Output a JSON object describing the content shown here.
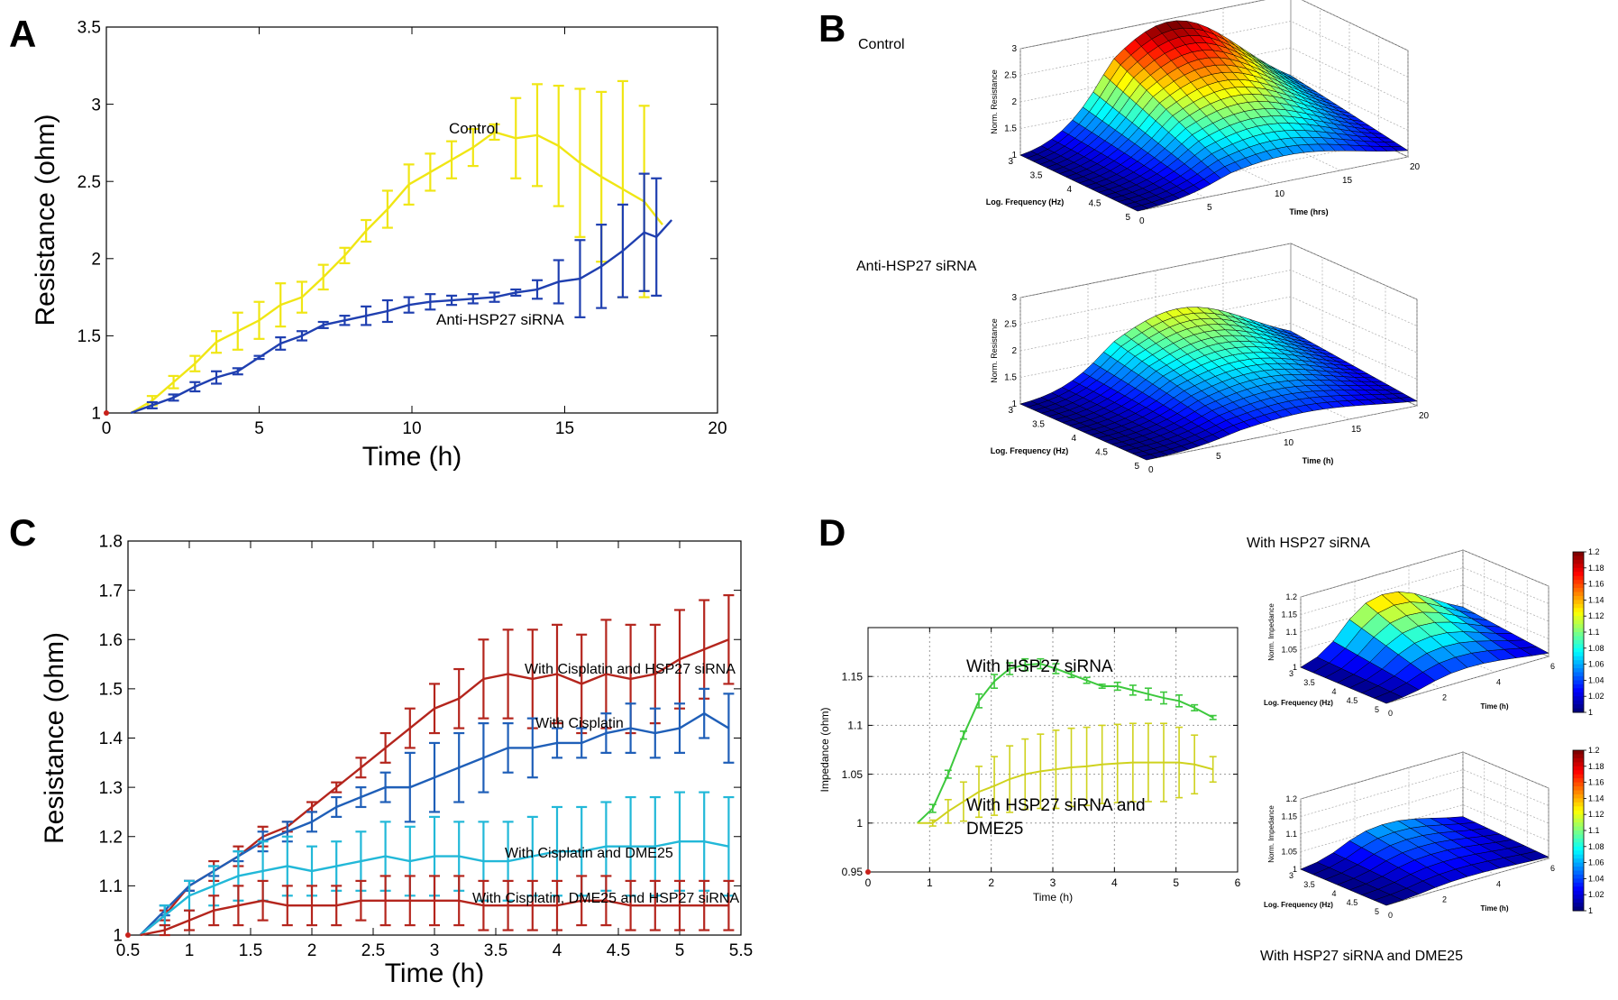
{
  "colors": {
    "yellow": "#f0e614",
    "blue": "#1f3fb0",
    "red": "#b4251d",
    "mid_blue": "#1f5fb8",
    "cyan": "#22b8d8",
    "green": "#3cc83c",
    "olive": "#cfd21e",
    "axis": "#000000"
  },
  "chart_data": [
    {
      "id": "A",
      "panel_label": "A",
      "type": "line",
      "xlabel": "Time (h)",
      "ylabel": "Resistance (ohm)",
      "xlim": [
        0,
        20
      ],
      "ylim": [
        1,
        3.5
      ],
      "xticks": [
        0,
        5,
        10,
        15,
        20
      ],
      "yticks": [
        1,
        1.5,
        2,
        2.5,
        3,
        3.5
      ],
      "xtick_labels": [
        "0",
        "5",
        "10",
        "15",
        "20"
      ],
      "ytick_labels": [
        "1",
        "1.5",
        "2",
        "2.5",
        "3",
        "3.5"
      ],
      "series": [
        {
          "name": "Control",
          "color": "yellow",
          "x": [
            0.8,
            1.5,
            2.2,
            2.9,
            3.6,
            4.3,
            5.0,
            5.7,
            6.4,
            7.1,
            7.8,
            8.5,
            9.2,
            9.9,
            10.6,
            11.3,
            12.0,
            12.7,
            13.4,
            14.1,
            14.8,
            15.5,
            16.2,
            16.9,
            17.6,
            18.2
          ],
          "y": [
            1.0,
            1.08,
            1.2,
            1.32,
            1.46,
            1.53,
            1.6,
            1.7,
            1.75,
            1.88,
            2.02,
            2.18,
            2.32,
            2.48,
            2.56,
            2.64,
            2.72,
            2.82,
            2.78,
            2.8,
            2.73,
            2.62,
            2.53,
            2.45,
            2.37,
            2.22
          ],
          "err": [
            0,
            0.03,
            0.04,
            0.05,
            0.07,
            0.12,
            0.12,
            0.14,
            0.1,
            0.08,
            0.05,
            0.07,
            0.12,
            0.13,
            0.12,
            0.12,
            0.12,
            0.05,
            0.26,
            0.33,
            0.39,
            0.48,
            0.55,
            0.7,
            0.62,
            0
          ]
        },
        {
          "name": "Anti-HSP27 siRNA",
          "color": "blue",
          "x": [
            0.8,
            1.5,
            2.2,
            2.9,
            3.6,
            4.3,
            5.0,
            5.7,
            6.4,
            7.1,
            7.8,
            8.5,
            9.2,
            9.9,
            10.6,
            11.3,
            12.0,
            12.7,
            13.4,
            14.1,
            14.8,
            15.5,
            16.2,
            16.9,
            17.6,
            18.0,
            18.5
          ],
          "y": [
            1.0,
            1.05,
            1.1,
            1.17,
            1.23,
            1.27,
            1.36,
            1.45,
            1.5,
            1.57,
            1.6,
            1.63,
            1.66,
            1.7,
            1.72,
            1.73,
            1.74,
            1.75,
            1.78,
            1.8,
            1.85,
            1.87,
            1.95,
            2.05,
            2.17,
            2.14,
            2.25
          ],
          "err": [
            0,
            0.02,
            0.02,
            0.03,
            0.04,
            0.02,
            0.01,
            0.04,
            0.03,
            0.02,
            0.03,
            0.06,
            0.07,
            0.05,
            0.05,
            0.03,
            0.03,
            0.03,
            0.02,
            0.06,
            0.14,
            0.25,
            0.27,
            0.3,
            0.38,
            0.38,
            0
          ]
        }
      ],
      "annotations": [
        "Control",
        "Anti-HSP27 siRNA"
      ]
    },
    {
      "id": "B",
      "panel_label": "B",
      "type": "surface",
      "plots": [
        {
          "title": "Control",
          "zlabel": "Norm. Resistance",
          "xlabel": "Log. Frequency (Hz)",
          "ylabel": "Time (hrs)",
          "zticks": [
            "1",
            "1.5",
            "2",
            "2.5",
            "3"
          ],
          "xticks": [
            "3",
            "3.5",
            "4",
            "4.5",
            "5"
          ],
          "yticks": [
            "0",
            "5",
            "10",
            "15",
            "20"
          ],
          "peak": 2.95
        },
        {
          "title": "Anti-HSP27 siRNA",
          "zlabel": "Norm. Resistance",
          "xlabel": "Log. Frequency (Hz)",
          "ylabel": "Time (h)",
          "zticks": [
            "1",
            "1.5",
            "2",
            "2.5",
            "3"
          ],
          "xticks": [
            "3",
            "3.5",
            "4",
            "4.5",
            "5"
          ],
          "yticks": [
            "0",
            "5",
            "10",
            "15",
            "20"
          ],
          "peak": 2.2
        }
      ]
    },
    {
      "id": "C",
      "panel_label": "C",
      "type": "line",
      "xlabel": "Time (h)",
      "ylabel": "Resistance (ohm)",
      "xlim": [
        0.5,
        5.5
      ],
      "ylim": [
        1,
        1.8
      ],
      "xticks": [
        0.5,
        1,
        1.5,
        2,
        2.5,
        3,
        3.5,
        4,
        4.5,
        5,
        5.5
      ],
      "yticks": [
        1,
        1.1,
        1.2,
        1.3,
        1.4,
        1.5,
        1.6,
        1.7,
        1.8
      ],
      "xtick_labels": [
        "0.5",
        "1",
        "1.5",
        "2",
        "2.5",
        "3",
        "3.5",
        "4",
        "4.5",
        "5",
        "5.5"
      ],
      "ytick_labels": [
        "1",
        "1.1",
        "1.2",
        "1.3",
        "1.4",
        "1.5",
        "1.6",
        "1.7",
        "1.8"
      ],
      "series": [
        {
          "name": "With Cisplatin and HSP27 siRNA",
          "color": "red",
          "x": [
            0.6,
            0.8,
            1.0,
            1.2,
            1.4,
            1.6,
            1.8,
            2.0,
            2.2,
            2.4,
            2.6,
            2.8,
            3.0,
            3.2,
            3.4,
            3.6,
            3.8,
            4.0,
            4.2,
            4.4,
            4.6,
            4.8,
            5.0,
            5.2,
            5.4
          ],
          "y": [
            1.0,
            1.04,
            1.1,
            1.13,
            1.16,
            1.2,
            1.22,
            1.26,
            1.3,
            1.34,
            1.38,
            1.42,
            1.46,
            1.48,
            1.52,
            1.53,
            1.52,
            1.53,
            1.51,
            1.53,
            1.52,
            1.53,
            1.56,
            1.58,
            1.6
          ],
          "err": [
            0,
            0.01,
            0.01,
            0.02,
            0.02,
            0.02,
            0.01,
            0.01,
            0.01,
            0.02,
            0.03,
            0.04,
            0.05,
            0.06,
            0.08,
            0.09,
            0.1,
            0.1,
            0.1,
            0.11,
            0.11,
            0.1,
            0.1,
            0.1,
            0.09
          ]
        },
        {
          "name": "With Cisplatin",
          "color": "mid_blue",
          "x": [
            0.6,
            0.8,
            1.0,
            1.2,
            1.4,
            1.6,
            1.8,
            2.0,
            2.2,
            2.4,
            2.6,
            2.8,
            3.0,
            3.2,
            3.4,
            3.6,
            3.8,
            4.0,
            4.2,
            4.4,
            4.6,
            4.8,
            5.0,
            5.2,
            5.4
          ],
          "y": [
            1.0,
            1.05,
            1.1,
            1.13,
            1.16,
            1.19,
            1.21,
            1.23,
            1.26,
            1.28,
            1.3,
            1.3,
            1.32,
            1.34,
            1.36,
            1.38,
            1.38,
            1.39,
            1.39,
            1.41,
            1.42,
            1.41,
            1.42,
            1.45,
            1.42
          ],
          "err": [
            0,
            0.01,
            0.01,
            0.01,
            0.01,
            0.02,
            0.02,
            0.02,
            0.02,
            0.02,
            0.03,
            0.07,
            0.07,
            0.07,
            0.07,
            0.05,
            0.06,
            0.03,
            0.03,
            0.04,
            0.05,
            0.05,
            0.05,
            0.05,
            0.07
          ]
        },
        {
          "name": "With Cisplatin and DME25",
          "color": "cyan",
          "x": [
            0.6,
            0.8,
            1.0,
            1.2,
            1.4,
            1.6,
            1.8,
            2.0,
            2.2,
            2.4,
            2.6,
            2.8,
            3.0,
            3.2,
            3.4,
            3.6,
            3.8,
            4.0,
            4.2,
            4.4,
            4.6,
            4.8,
            5.0,
            5.2,
            5.4
          ],
          "y": [
            1.0,
            1.04,
            1.08,
            1.1,
            1.12,
            1.13,
            1.14,
            1.13,
            1.14,
            1.15,
            1.16,
            1.15,
            1.16,
            1.16,
            1.15,
            1.15,
            1.16,
            1.17,
            1.17,
            1.18,
            1.18,
            1.18,
            1.19,
            1.19,
            1.18
          ],
          "err": [
            0,
            0.02,
            0.03,
            0.04,
            0.05,
            0.06,
            0.06,
            0.05,
            0.05,
            0.06,
            0.07,
            0.07,
            0.08,
            0.07,
            0.08,
            0.08,
            0.08,
            0.09,
            0.09,
            0.09,
            0.1,
            0.1,
            0.1,
            0.1,
            0.1
          ]
        },
        {
          "name": "With Cisplatin, DME25 and HSP27 siRNA",
          "color": "red",
          "x": [
            0.6,
            0.8,
            1.0,
            1.2,
            1.4,
            1.6,
            1.8,
            2.0,
            2.2,
            2.4,
            2.6,
            2.8,
            3.0,
            3.2,
            3.4,
            3.6,
            3.8,
            4.0,
            4.2,
            4.4,
            4.6,
            4.8,
            5.0,
            5.2,
            5.4
          ],
          "y": [
            1.0,
            1.01,
            1.03,
            1.05,
            1.06,
            1.07,
            1.06,
            1.06,
            1.06,
            1.07,
            1.07,
            1.07,
            1.07,
            1.07,
            1.06,
            1.06,
            1.06,
            1.06,
            1.07,
            1.07,
            1.06,
            1.06,
            1.06,
            1.06,
            1.06
          ],
          "err": [
            0,
            0.01,
            0.02,
            0.03,
            0.04,
            0.04,
            0.04,
            0.04,
            0.04,
            0.04,
            0.05,
            0.05,
            0.05,
            0.05,
            0.05,
            0.05,
            0.05,
            0.05,
            0.05,
            0.05,
            0.05,
            0.05,
            0.05,
            0.05,
            0.05
          ]
        }
      ],
      "annotations": [
        "With Cisplatin and HSP27 siRNA",
        "With Cisplatin",
        "With Cisplatin and DME25",
        "With Cisplatin, DME25 and HSP27 siRNA"
      ]
    },
    {
      "id": "D",
      "panel_label": "D",
      "type": "line",
      "xlabel": "Time (h)",
      "ylabel": "Impedance (ohm)",
      "xlim": [
        0,
        6
      ],
      "ylim": [
        0.95,
        1.2
      ],
      "grid": true,
      "xticks": [
        0,
        1,
        2,
        3,
        4,
        5,
        6
      ],
      "yticks": [
        0.95,
        1,
        1.05,
        1.1,
        1.15
      ],
      "xtick_labels": [
        "0",
        "1",
        "2",
        "3",
        "4",
        "5",
        "6"
      ],
      "ytick_labels": [
        "0.95",
        "1",
        "1.05",
        "1.1",
        "1.15"
      ],
      "series": [
        {
          "name": "With HSP27 siRNA",
          "color": "green",
          "x": [
            0.8,
            1.05,
            1.3,
            1.55,
            1.8,
            2.05,
            2.3,
            2.55,
            2.8,
            3.05,
            3.3,
            3.55,
            3.8,
            4.05,
            4.3,
            4.55,
            4.8,
            5.05,
            5.3,
            5.6
          ],
          "y": [
            1.0,
            1.015,
            1.05,
            1.09,
            1.125,
            1.145,
            1.158,
            1.162,
            1.163,
            1.158,
            1.152,
            1.146,
            1.14,
            1.14,
            1.136,
            1.132,
            1.128,
            1.125,
            1.118,
            1.108
          ],
          "err": [
            0,
            0.004,
            0.004,
            0.004,
            0.007,
            0.007,
            0.006,
            0.006,
            0.005,
            0.005,
            0.003,
            0.003,
            0.002,
            0.004,
            0.005,
            0.006,
            0.006,
            0.006,
            0.003,
            0.002
          ]
        },
        {
          "name": "With HSP27 siRNA and DME25",
          "color": "olive",
          "x": [
            0.8,
            1.05,
            1.3,
            1.55,
            1.8,
            2.05,
            2.3,
            2.55,
            2.8,
            3.05,
            3.3,
            3.55,
            3.8,
            4.05,
            4.3,
            4.55,
            4.8,
            5.05,
            5.3,
            5.6
          ],
          "y": [
            1.0,
            1.0,
            1.012,
            1.022,
            1.032,
            1.038,
            1.045,
            1.05,
            1.053,
            1.055,
            1.057,
            1.058,
            1.06,
            1.061,
            1.062,
            1.062,
            1.062,
            1.062,
            1.06,
            1.055
          ],
          "err": [
            0,
            0.003,
            0.012,
            0.02,
            0.026,
            0.03,
            0.034,
            0.036,
            0.038,
            0.04,
            0.04,
            0.04,
            0.04,
            0.04,
            0.04,
            0.04,
            0.04,
            0.036,
            0.03,
            0.013
          ]
        }
      ],
      "annotations": [
        "With HSP27 siRNA",
        "With HSP27 siRNA and",
        "DME25"
      ],
      "surface_plots": [
        {
          "title": "With HSP27 siRNA",
          "zlabel": "Norm. Impedance",
          "xlabel": "Log. Frequency (Hz)",
          "ylabel": "Time (h)",
          "zticks": [
            "1",
            "1.05",
            "1.1",
            "1.15",
            "1.2"
          ],
          "xticks": [
            "3",
            "3.5",
            "4",
            "4.5",
            "5"
          ],
          "yticks": [
            "0",
            "2",
            "4",
            "6"
          ],
          "peak": 1.14
        },
        {
          "title": "With HSP27 siRNA and DME25",
          "zlabel": "Norm. Impedance",
          "xlabel": "Log. Frequency (Hz)",
          "ylabel": "Time (h)",
          "zticks": [
            "1",
            "1.05",
            "1.1",
            "1.15",
            "1.2"
          ],
          "xticks": [
            "3",
            "3.5",
            "4",
            "4.5",
            "5"
          ],
          "yticks": [
            "0",
            "2",
            "4",
            "6"
          ],
          "peak": 1.06
        }
      ],
      "colorbar_ticks": [
        "1.2",
        "1.18",
        "1.16",
        "1.14",
        "1.12",
        "1.1",
        "1.08",
        "1.06",
        "1.04",
        "1.02",
        "1"
      ]
    }
  ]
}
